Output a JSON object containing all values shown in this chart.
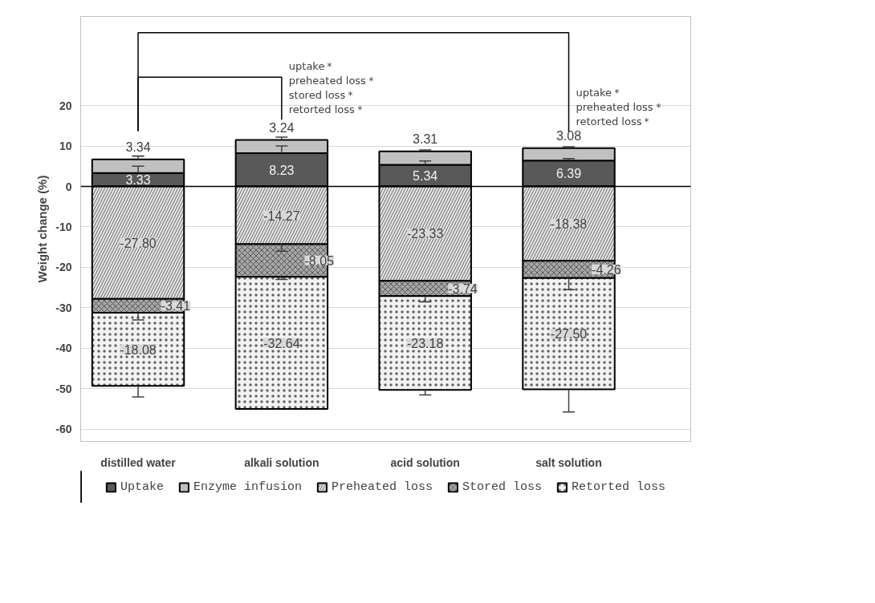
{
  "chart_data": {
    "type": "bar",
    "stacked": true,
    "ylabel": "Weight change (%)",
    "categories": [
      "distilled water",
      "alkali solution",
      "acid solution",
      "salt solution"
    ],
    "series": [
      {
        "name": "Uptake",
        "color": "#595959",
        "values": [
          3.33,
          8.23,
          5.34,
          6.39
        ],
        "value_labels": [
          "3.33",
          "8.23",
          "5.34",
          "6.39"
        ],
        "errors": [
          [
            3.33,
            5.0
          ],
          [
            8.23,
            10.0
          ],
          [
            5.34,
            6.3
          ],
          [
            6.39,
            6.9
          ]
        ]
      },
      {
        "name": "Enzyme infusion",
        "color": "#c0c0c0",
        "values": [
          3.34,
          3.24,
          3.31,
          3.08
        ],
        "value_labels": [
          "3.34",
          "3.24",
          "3.31",
          "3.08"
        ],
        "errors": [
          [
            6.67,
            7.5
          ],
          [
            11.47,
            12.2
          ],
          [
            8.65,
            9.0
          ],
          [
            9.47,
            9.8
          ]
        ]
      },
      {
        "name": "Preheated loss",
        "color": "#e6e6e6",
        "values": [
          -27.8,
          -14.27,
          -23.33,
          -18.38
        ],
        "value_labels": [
          "-27.80",
          "-14.27",
          "-23.33",
          "-18.38"
        ],
        "errors": [
          null,
          [
            -16.0,
            -14.27
          ],
          null,
          null
        ]
      },
      {
        "name": "Stored loss",
        "color": "#a6a6a6",
        "values": [
          -3.41,
          -8.05,
          -3.74,
          -4.26
        ],
        "value_labels": [
          "-3.41",
          "-8.05",
          "-3.74",
          "-4.26"
        ],
        "errors": [
          [
            -33.0,
            -31.21
          ],
          [
            -23.0,
            -22.32
          ],
          [
            -28.5,
            -27.07
          ],
          [
            -25.5,
            -22.64
          ]
        ]
      },
      {
        "name": "Retorted loss",
        "color": "#f2f2f2",
        "values": [
          -18.08,
          -32.64,
          -23.18,
          -27.5
        ],
        "value_labels": [
          "-18.08",
          "-32.64",
          "-23.18",
          "-27.50"
        ],
        "errors": [
          [
            -52.0,
            -49.29
          ],
          null,
          [
            -51.5,
            -50.25
          ],
          [
            -55.7,
            -50.14
          ]
        ]
      }
    ],
    "ylim": [
      -63,
      42
    ],
    "yticks": [
      -60,
      -50,
      -40,
      -30,
      -20,
      -10,
      0,
      10,
      20
    ],
    "grid": "y",
    "legend": "bottom",
    "ref_lines": [
      {
        "axis": "y",
        "value": 0,
        "color": "#000000"
      }
    ],
    "annotations": [
      "uptake＊\npreheated loss＊\nstored loss＊\nretorted loss＊",
      "uptake＊\npreheated loss＊\nretorted loss＊"
    ]
  }
}
